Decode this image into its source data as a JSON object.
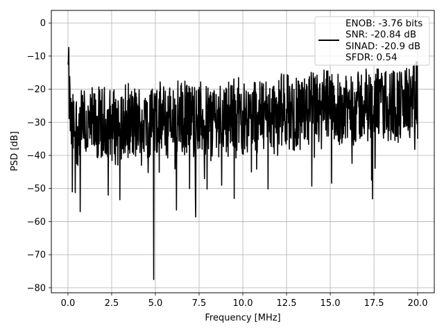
{
  "chart_data": {
    "type": "line",
    "title": "",
    "xlabel": "Frequency [MHz]",
    "ylabel": "PSD [dB]",
    "xlim": [
      -0.95,
      20.95
    ],
    "ylim": [
      -81.5,
      3.8
    ],
    "x_ticks": [
      0.0,
      2.5,
      5.0,
      7.5,
      10.0,
      12.5,
      15.0,
      17.5,
      20.0
    ],
    "x_tick_labels": [
      "0.0",
      "2.5",
      "5.0",
      "7.5",
      "10.0",
      "12.5",
      "15.0",
      "17.5",
      "20.0"
    ],
    "y_ticks": [
      0,
      -10,
      -20,
      -30,
      -40,
      -50,
      -60,
      -70,
      -80
    ],
    "y_tick_labels": [
      "0",
      "−10",
      "−20",
      "−30",
      "−40",
      "−50",
      "−60",
      "−70",
      "−80"
    ],
    "grid": true,
    "legend_position": "top-right",
    "series": [
      {
        "legend_lines": [
          "ENOB: -3.76 bits",
          "SNR: -20.84 dB",
          "SINAD: -20.9 dB",
          "SFDR: 0.54"
        ],
        "color": "#000000",
        "x_range": [
          0.0,
          20.0
        ],
        "num_points": 1200,
        "description_points": [
          [
            0.0,
            -12
          ],
          [
            0.03,
            -9.6
          ],
          [
            0.08,
            -18
          ],
          [
            0.15,
            -28
          ],
          [
            0.25,
            -51
          ],
          [
            0.45,
            -33
          ],
          [
            0.7,
            -57
          ],
          [
            0.9,
            -24
          ],
          [
            1.0,
            -38
          ],
          [
            1.5,
            -27
          ],
          [
            2.0,
            -37
          ],
          [
            2.3,
            -52
          ],
          [
            2.5,
            -30
          ],
          [
            3.0,
            -32
          ],
          [
            3.5,
            -26
          ],
          [
            4.0,
            -35
          ],
          [
            4.5,
            -30
          ],
          [
            4.9,
            -77.5
          ],
          [
            5.2,
            -23
          ],
          [
            5.5,
            -31
          ],
          [
            6.0,
            -36
          ],
          [
            6.2,
            -56.5
          ],
          [
            6.6,
            -31
          ],
          [
            7.3,
            -58.6
          ],
          [
            7.8,
            -47
          ],
          [
            8.5,
            -30
          ],
          [
            9.0,
            -27
          ],
          [
            9.5,
            -53
          ],
          [
            10.0,
            -28
          ],
          [
            10.5,
            -45
          ],
          [
            11.0,
            -27
          ],
          [
            11.5,
            -31
          ],
          [
            12.0,
            -40
          ],
          [
            12.5,
            -26
          ],
          [
            13.0,
            -33
          ],
          [
            13.5,
            -29
          ],
          [
            14.0,
            -22
          ],
          [
            14.5,
            -38
          ],
          [
            15.0,
            -29
          ],
          [
            15.5,
            -24
          ],
          [
            16.0,
            -28
          ],
          [
            16.5,
            -21
          ],
          [
            17.0,
            -18
          ],
          [
            17.5,
            -25
          ],
          [
            18.0,
            -20
          ],
          [
            18.5,
            -26
          ],
          [
            19.0,
            -30
          ],
          [
            19.5,
            -22
          ],
          [
            20.0,
            -35
          ]
        ]
      }
    ]
  }
}
